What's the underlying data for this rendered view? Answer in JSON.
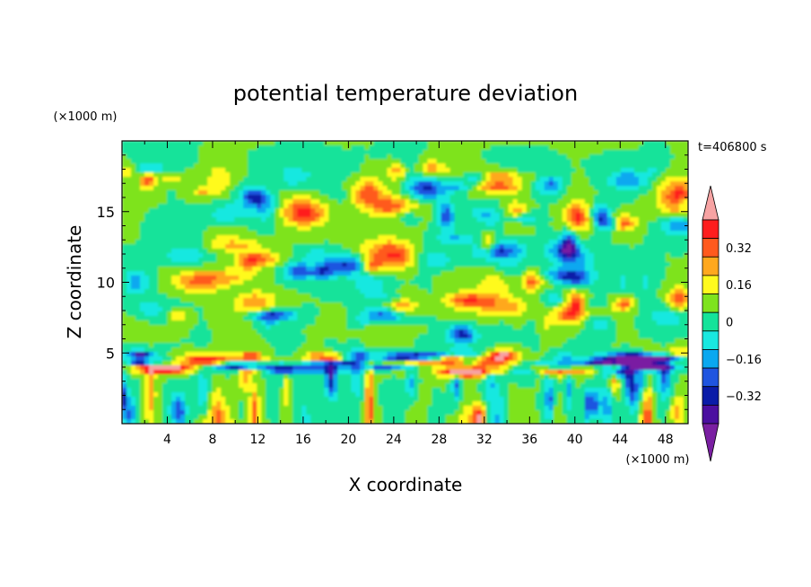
{
  "chart_data": {
    "type": "heatmap",
    "title": "potential temperature deviation",
    "time_label": "t=406800 s",
    "xlabel": "X coordinate",
    "ylabel": "Z coordinate",
    "x_unit": "(×1000 m)",
    "y_unit": "(×1000 m)",
    "xlim": [
      0,
      50
    ],
    "ylim": [
      0,
      20
    ],
    "x_ticks": [
      "4",
      "8",
      "12",
      "16",
      "20",
      "24",
      "28",
      "32",
      "36",
      "40",
      "44",
      "48"
    ],
    "y_ticks": [
      "5",
      "10",
      "15"
    ],
    "colorbar": {
      "levels": [
        -0.48,
        -0.4,
        -0.32,
        -0.24,
        -0.16,
        -0.08,
        0,
        0.08,
        0.16,
        0.24,
        0.32,
        0.4
      ],
      "colors": [
        "#7a1fa2",
        "#4b0fa0",
        "#0a1ca8",
        "#1f55e0",
        "#0aa8f0",
        "#19e8e0",
        "#14e39a",
        "#7ee31e",
        "#fffa1e",
        "#ffa81e",
        "#ff5a1e",
        "#ff1e1e",
        "#f7a3a3"
      ],
      "labels": [
        "0.32",
        "0.16",
        "0",
        "−0.16",
        "−0.32"
      ],
      "extend": "both"
    }
  }
}
